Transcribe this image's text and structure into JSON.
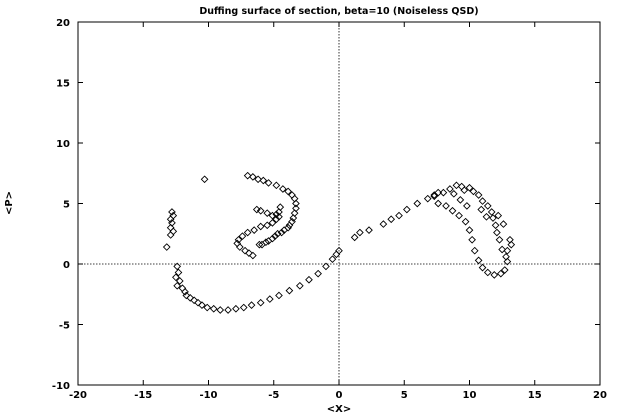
{
  "chart_data": {
    "type": "scatter",
    "title": "Duffing surface of section, beta=10 (Noiseless QSD)",
    "xlabel": "<X>",
    "ylabel": "<P>",
    "xlim": [
      -20,
      20
    ],
    "ylim": [
      -10,
      20
    ],
    "xticks": [
      -20,
      -15,
      -10,
      -5,
      0,
      5,
      10,
      15,
      20
    ],
    "yticks": [
      -10,
      -5,
      0,
      5,
      10,
      15,
      20
    ],
    "zero_lines": true,
    "grid": false,
    "marker": "diamond",
    "marker_color": "#000000",
    "series": [
      {
        "points": [
          [
            -10.3,
            7.0
          ],
          [
            -7.0,
            7.3
          ],
          [
            -6.6,
            7.2
          ],
          [
            -6.2,
            7.0
          ],
          [
            -5.8,
            6.9
          ],
          [
            -5.4,
            6.7
          ],
          [
            -4.8,
            6.5
          ],
          [
            -4.3,
            6.2
          ],
          [
            -3.9,
            6.0
          ],
          [
            -3.6,
            5.7
          ],
          [
            -3.4,
            5.4
          ],
          [
            -3.3,
            5.0
          ],
          [
            -3.3,
            4.6
          ],
          [
            -3.4,
            4.2
          ],
          [
            -3.5,
            3.8
          ],
          [
            -3.6,
            3.5
          ],
          [
            -3.8,
            3.2
          ],
          [
            -3.9,
            3.0
          ],
          [
            -4.2,
            2.8
          ],
          [
            -4.4,
            2.6
          ],
          [
            -4.7,
            2.5
          ],
          [
            -4.9,
            2.3
          ],
          [
            -5.1,
            2.1
          ],
          [
            -5.4,
            1.9
          ],
          [
            -5.6,
            1.8
          ],
          [
            -5.9,
            1.6
          ],
          [
            -6.1,
            1.6
          ],
          [
            -6.3,
            4.5
          ],
          [
            -6.0,
            4.4
          ],
          [
            -5.5,
            4.2
          ],
          [
            -5.1,
            4.0
          ],
          [
            -4.8,
            4.1
          ],
          [
            -4.6,
            4.3
          ],
          [
            -4.5,
            4.7
          ],
          [
            -4.6,
            3.9
          ],
          [
            -4.8,
            3.7
          ],
          [
            -5.1,
            3.4
          ],
          [
            -5.5,
            3.2
          ],
          [
            -6.0,
            3.1
          ],
          [
            -6.5,
            2.8
          ],
          [
            -7.0,
            2.6
          ],
          [
            -7.4,
            2.3
          ],
          [
            -7.7,
            2.0
          ],
          [
            -7.8,
            1.7
          ],
          [
            -7.6,
            1.4
          ],
          [
            -7.2,
            1.1
          ],
          [
            -6.9,
            0.9
          ],
          [
            -6.6,
            0.7
          ],
          [
            -12.8,
            4.3
          ],
          [
            -12.7,
            4.0
          ],
          [
            -12.9,
            3.7
          ],
          [
            -12.8,
            3.4
          ],
          [
            -12.9,
            3.0
          ],
          [
            -12.7,
            2.7
          ],
          [
            -12.9,
            2.4
          ],
          [
            -13.2,
            1.4
          ],
          [
            -12.4,
            -0.2
          ],
          [
            -12.3,
            -0.7
          ],
          [
            -12.5,
            -1.1
          ],
          [
            -12.2,
            -1.4
          ],
          [
            -12.4,
            -1.8
          ],
          [
            -12.0,
            -2.0
          ],
          [
            -11.8,
            -2.3
          ],
          [
            -11.7,
            -2.6
          ],
          [
            -11.4,
            -2.8
          ],
          [
            -11.1,
            -3.0
          ],
          [
            -10.8,
            -3.2
          ],
          [
            -10.5,
            -3.4
          ],
          [
            -10.1,
            -3.6
          ],
          [
            -9.6,
            -3.7
          ],
          [
            -9.1,
            -3.8
          ],
          [
            -8.5,
            -3.8
          ],
          [
            -7.9,
            -3.7
          ],
          [
            -7.3,
            -3.6
          ],
          [
            -6.7,
            -3.4
          ],
          [
            -6.0,
            -3.2
          ],
          [
            -5.3,
            -2.9
          ],
          [
            -4.6,
            -2.6
          ],
          [
            -3.8,
            -2.2
          ],
          [
            -3.0,
            -1.8
          ],
          [
            -2.3,
            -1.3
          ],
          [
            -1.6,
            -0.8
          ],
          [
            -1.0,
            -0.2
          ],
          [
            -0.5,
            0.4
          ],
          [
            -0.2,
            0.8
          ],
          [
            0.0,
            1.1
          ],
          [
            1.2,
            2.2
          ],
          [
            1.6,
            2.6
          ],
          [
            2.3,
            2.8
          ],
          [
            3.4,
            3.3
          ],
          [
            4.0,
            3.7
          ],
          [
            4.6,
            4.0
          ],
          [
            5.2,
            4.5
          ],
          [
            6.0,
            5.0
          ],
          [
            6.8,
            5.4
          ],
          [
            7.3,
            5.7
          ],
          [
            7.6,
            5.9
          ],
          [
            8.5,
            6.2
          ],
          [
            9.0,
            6.5
          ],
          [
            9.4,
            6.4
          ],
          [
            9.6,
            6.1
          ],
          [
            10.0,
            6.3
          ],
          [
            10.3,
            6.0
          ],
          [
            10.7,
            5.7
          ],
          [
            11.0,
            5.2
          ],
          [
            11.4,
            4.8
          ],
          [
            11.7,
            4.3
          ],
          [
            11.8,
            3.8
          ],
          [
            12.0,
            3.2
          ],
          [
            12.1,
            2.6
          ],
          [
            12.3,
            2.0
          ],
          [
            12.5,
            1.2
          ],
          [
            12.8,
            0.6
          ],
          [
            12.9,
            0.2
          ],
          [
            12.7,
            -0.5
          ],
          [
            12.4,
            -0.8
          ],
          [
            11.9,
            -0.9
          ],
          [
            11.4,
            -0.7
          ],
          [
            11.0,
            -0.3
          ],
          [
            10.7,
            0.3
          ],
          [
            10.4,
            1.1
          ],
          [
            10.2,
            2.0
          ],
          [
            10.0,
            2.8
          ],
          [
            9.7,
            3.5
          ],
          [
            9.2,
            4.0
          ],
          [
            8.7,
            4.4
          ],
          [
            8.2,
            4.8
          ],
          [
            7.6,
            5.0
          ],
          [
            7.3,
            5.6
          ],
          [
            8.0,
            5.9
          ],
          [
            8.8,
            5.8
          ],
          [
            9.3,
            5.3
          ],
          [
            9.8,
            4.8
          ],
          [
            12.2,
            4.0
          ],
          [
            12.6,
            3.3
          ],
          [
            13.1,
            2.0
          ],
          [
            13.2,
            1.6
          ],
          [
            12.9,
            1.1
          ],
          [
            10.9,
            4.5
          ],
          [
            11.3,
            3.9
          ]
        ]
      }
    ]
  }
}
